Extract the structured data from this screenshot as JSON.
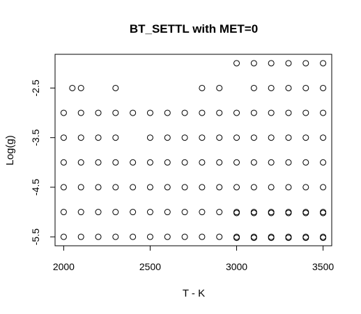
{
  "chart_data": {
    "type": "scatter",
    "title": "BT_SETTL with MET=0",
    "xlabel": "T - K",
    "ylabel": "Log(g)",
    "xlim": [
      1950,
      3550
    ],
    "ylim": [
      -5.68,
      -1.82
    ],
    "x_ticks": [
      2000,
      2500,
      3000,
      3500
    ],
    "x_tick_labels": [
      "2000",
      "2500",
      "3000",
      "3500"
    ],
    "y_ticks": [
      -2.5,
      -3.5,
      -4.5,
      -5.5
    ],
    "y_tick_labels": [
      "-2.5",
      "-3.5",
      "-4.5",
      "-5.5"
    ],
    "grid": false,
    "legend": "none",
    "marker": "open-circle",
    "points": [
      {
        "x": 3000,
        "y": -2.0
      },
      {
        "x": 3100,
        "y": -2.0
      },
      {
        "x": 3200,
        "y": -2.0
      },
      {
        "x": 3300,
        "y": -2.0
      },
      {
        "x": 3400,
        "y": -2.0
      },
      {
        "x": 3500,
        "y": -2.0
      },
      {
        "x": 2050,
        "y": -2.5
      },
      {
        "x": 2100,
        "y": -2.5
      },
      {
        "x": 2300,
        "y": -2.5
      },
      {
        "x": 2800,
        "y": -2.5
      },
      {
        "x": 2900,
        "y": -2.5
      },
      {
        "x": 3100,
        "y": -2.5
      },
      {
        "x": 3200,
        "y": -2.5
      },
      {
        "x": 3300,
        "y": -2.5
      },
      {
        "x": 3400,
        "y": -2.5
      },
      {
        "x": 3500,
        "y": -2.5
      },
      {
        "x": 2000,
        "y": -3.0
      },
      {
        "x": 2100,
        "y": -3.0
      },
      {
        "x": 2200,
        "y": -3.0
      },
      {
        "x": 2300,
        "y": -3.0
      },
      {
        "x": 2400,
        "y": -3.0
      },
      {
        "x": 2500,
        "y": -3.0
      },
      {
        "x": 2600,
        "y": -3.0
      },
      {
        "x": 2700,
        "y": -3.0
      },
      {
        "x": 2800,
        "y": -3.0
      },
      {
        "x": 2900,
        "y": -3.0
      },
      {
        "x": 3000,
        "y": -3.0
      },
      {
        "x": 3100,
        "y": -3.0
      },
      {
        "x": 3200,
        "y": -3.0
      },
      {
        "x": 3300,
        "y": -3.0
      },
      {
        "x": 3400,
        "y": -3.0
      },
      {
        "x": 3500,
        "y": -3.0
      },
      {
        "x": 2000,
        "y": -3.5
      },
      {
        "x": 2100,
        "y": -3.5
      },
      {
        "x": 2200,
        "y": -3.5
      },
      {
        "x": 2300,
        "y": -3.5
      },
      {
        "x": 2500,
        "y": -3.5
      },
      {
        "x": 2600,
        "y": -3.5
      },
      {
        "x": 2700,
        "y": -3.5
      },
      {
        "x": 2800,
        "y": -3.5
      },
      {
        "x": 2900,
        "y": -3.5
      },
      {
        "x": 3000,
        "y": -3.5
      },
      {
        "x": 3100,
        "y": -3.5
      },
      {
        "x": 3200,
        "y": -3.5
      },
      {
        "x": 3300,
        "y": -3.5
      },
      {
        "x": 3400,
        "y": -3.5
      },
      {
        "x": 3500,
        "y": -3.5
      },
      {
        "x": 2000,
        "y": -4.0
      },
      {
        "x": 2100,
        "y": -4.0
      },
      {
        "x": 2200,
        "y": -4.0
      },
      {
        "x": 2300,
        "y": -4.0
      },
      {
        "x": 2400,
        "y": -4.0
      },
      {
        "x": 2500,
        "y": -4.0
      },
      {
        "x": 2600,
        "y": -4.0
      },
      {
        "x": 2700,
        "y": -4.0
      },
      {
        "x": 2800,
        "y": -4.0
      },
      {
        "x": 2900,
        "y": -4.0
      },
      {
        "x": 3000,
        "y": -4.0
      },
      {
        "x": 3100,
        "y": -4.0
      },
      {
        "x": 3200,
        "y": -4.0
      },
      {
        "x": 3300,
        "y": -4.0
      },
      {
        "x": 3400,
        "y": -4.0
      },
      {
        "x": 3500,
        "y": -4.0
      },
      {
        "x": 2000,
        "y": -4.5
      },
      {
        "x": 2100,
        "y": -4.5
      },
      {
        "x": 2200,
        "y": -4.5
      },
      {
        "x": 2300,
        "y": -4.5
      },
      {
        "x": 2400,
        "y": -4.5
      },
      {
        "x": 2500,
        "y": -4.5
      },
      {
        "x": 2600,
        "y": -4.5
      },
      {
        "x": 2700,
        "y": -4.5
      },
      {
        "x": 2800,
        "y": -4.5
      },
      {
        "x": 2900,
        "y": -4.5
      },
      {
        "x": 3000,
        "y": -4.5
      },
      {
        "x": 3100,
        "y": -4.5
      },
      {
        "x": 3200,
        "y": -4.5
      },
      {
        "x": 3300,
        "y": -4.5
      },
      {
        "x": 3400,
        "y": -4.5
      },
      {
        "x": 3500,
        "y": -4.5
      },
      {
        "x": 2000,
        "y": -5.0
      },
      {
        "x": 2100,
        "y": -5.0
      },
      {
        "x": 2200,
        "y": -5.0
      },
      {
        "x": 2300,
        "y": -5.0
      },
      {
        "x": 2400,
        "y": -5.0
      },
      {
        "x": 2500,
        "y": -5.0
      },
      {
        "x": 2600,
        "y": -5.0
      },
      {
        "x": 2700,
        "y": -5.0
      },
      {
        "x": 2800,
        "y": -5.0
      },
      {
        "x": 2900,
        "y": -5.0
      },
      {
        "x": 3000,
        "y": -5.0
      },
      {
        "x": 3100,
        "y": -5.0
      },
      {
        "x": 3200,
        "y": -5.0
      },
      {
        "x": 3300,
        "y": -5.0
      },
      {
        "x": 3400,
        "y": -5.0
      },
      {
        "x": 3500,
        "y": -5.0
      },
      {
        "x": 3000,
        "y": -5.02
      },
      {
        "x": 3100,
        "y": -5.02
      },
      {
        "x": 3200,
        "y": -5.02
      },
      {
        "x": 3300,
        "y": -5.02
      },
      {
        "x": 3400,
        "y": -5.02
      },
      {
        "x": 3500,
        "y": -5.02
      },
      {
        "x": 2000,
        "y": -5.5
      },
      {
        "x": 2100,
        "y": -5.5
      },
      {
        "x": 2200,
        "y": -5.5
      },
      {
        "x": 2300,
        "y": -5.5
      },
      {
        "x": 2400,
        "y": -5.5
      },
      {
        "x": 2500,
        "y": -5.5
      },
      {
        "x": 2600,
        "y": -5.5
      },
      {
        "x": 2700,
        "y": -5.5
      },
      {
        "x": 2800,
        "y": -5.5
      },
      {
        "x": 2900,
        "y": -5.5
      },
      {
        "x": 3000,
        "y": -5.5
      },
      {
        "x": 3100,
        "y": -5.5
      },
      {
        "x": 3200,
        "y": -5.5
      },
      {
        "x": 3300,
        "y": -5.5
      },
      {
        "x": 3400,
        "y": -5.5
      },
      {
        "x": 3500,
        "y": -5.5
      },
      {
        "x": 3000,
        "y": -5.52
      },
      {
        "x": 3100,
        "y": -5.52
      },
      {
        "x": 3200,
        "y": -5.52
      },
      {
        "x": 3300,
        "y": -5.52
      },
      {
        "x": 3400,
        "y": -5.52
      },
      {
        "x": 3500,
        "y": -5.52
      }
    ]
  }
}
